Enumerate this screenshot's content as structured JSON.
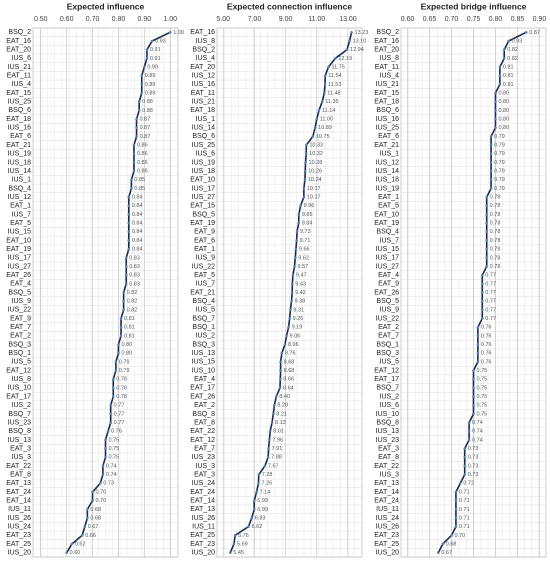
{
  "chart_data": [
    {
      "type": "line",
      "orientation": "horizontal",
      "title": "Expected influence",
      "grid": true,
      "color": "#1b2a4a",
      "marker_color": "#4f7fbf",
      "xlim": [
        0.47,
        1.03
      ],
      "xticks": [
        {
          "value": 0.5,
          "label": "0.50"
        },
        {
          "value": 0.6,
          "label": "0.60"
        },
        {
          "value": 0.7,
          "label": "0.70"
        },
        {
          "value": 0.8,
          "label": "0.80"
        },
        {
          "value": 0.9,
          "label": "0.90"
        },
        {
          "value": 1,
          "label": "1.00"
        }
      ],
      "categories": [
        "BSQ_2",
        "EAT_16",
        "EAT_20",
        "IUS_6",
        "IUS_21",
        "EAT_11",
        "IUS_4",
        "EAT_15",
        "IUS_25",
        "BSQ_6",
        "EAT_18",
        "IUS_16",
        "EAT_6",
        "EAT_21",
        "IUS_19",
        "IUS_18",
        "IUS_14",
        "IUS_1",
        "BSQ_4",
        "IUS_12",
        "EAT_1",
        "IUS_7",
        "EAT_5",
        "IUS_15",
        "EAT_10",
        "EAT_19",
        "IUS_17",
        "IUS_27",
        "EAT_26",
        "EAT_4",
        "BSQ_5",
        "IUS_9",
        "IUS_22",
        "EAT_9",
        "EAT_7",
        "EAT_2",
        "BSQ_3",
        "BSQ_1",
        "IUS_5",
        "EAT_12",
        "IUS_8",
        "IUS_10",
        "EAT_17",
        "IUS_2",
        "BSQ_7",
        "IUS_23",
        "BSQ_8",
        "IUS_13",
        "EAT_3",
        "IUS_3",
        "EAT_22",
        "EAT_8",
        "EAT_13",
        "EAT_24",
        "EAT_14",
        "IUS_11",
        "IUS_26",
        "IUS_24",
        "EAT_23",
        "EAT_25",
        "IUS_20"
      ],
      "values": [
        1,
        0.93,
        0.91,
        0.91,
        0.9,
        0.89,
        0.89,
        0.89,
        0.88,
        0.88,
        0.87,
        0.87,
        0.87,
        0.86,
        0.86,
        0.86,
        0.86,
        0.85,
        0.85,
        0.84,
        0.84,
        0.84,
        0.84,
        0.84,
        0.84,
        0.84,
        0.83,
        0.83,
        0.83,
        0.83,
        0.82,
        0.82,
        0.82,
        0.81,
        0.81,
        0.81,
        0.8,
        0.8,
        0.79,
        0.79,
        0.78,
        0.78,
        0.78,
        0.77,
        0.77,
        0.77,
        0.76,
        0.75,
        0.75,
        0.75,
        0.74,
        0.74,
        0.73,
        0.7,
        0.7,
        0.68,
        0.68,
        0.67,
        0.66,
        0.62,
        0.6
      ],
      "value_labels": [
        "1.00",
        "0.93",
        "0.91",
        "0.91",
        "0.90",
        "0.89",
        "0.89",
        "0.89",
        "0.88",
        "0.88",
        "0.87",
        "0.87",
        "0.87",
        "0.86",
        "0.86",
        "0.86",
        "0.86",
        "0.85",
        "0.85",
        "0.84",
        "0.84",
        "0.84",
        "0.84",
        "0.84",
        "0.84",
        "0.84",
        "0.83",
        "0.83",
        "0.83",
        "0.83",
        "0.82",
        "0.82",
        "0.82",
        "0.81",
        "0.81",
        "0.81",
        "0.80",
        "0.80",
        "0.79",
        "0.79",
        "0.78",
        "0.78",
        "0.78",
        "0.77",
        "0.77",
        "0.77",
        "0.76",
        "0.75",
        "0.75",
        "0.75",
        "0.74",
        "0.74",
        "0.73",
        "0.70",
        "0.70",
        "0.68",
        "0.68",
        "0.67",
        "0.66",
        "0.62",
        "0.60"
      ]
    },
    {
      "type": "line",
      "orientation": "horizontal",
      "title": "Expected connection influence",
      "grid": true,
      "color": "#1b2a4a",
      "marker_color": "#4f7fbf",
      "xlim": [
        4.6,
        13.9
      ],
      "xticks": [
        {
          "value": 5,
          "label": "5.00"
        },
        {
          "value": 7,
          "label": "7.00"
        },
        {
          "value": 9,
          "label": "9.00"
        },
        {
          "value": 11,
          "label": "11.00"
        },
        {
          "value": 13,
          "label": "13.00"
        }
      ],
      "categories": [
        "EAT_16",
        "IUS_8",
        "BSQ_2",
        "IUS_4",
        "EAT_20",
        "IUS_12",
        "IUS_16",
        "EAT_11",
        "IUS_21",
        "EAT_18",
        "IUS_1",
        "IUS_14",
        "BSQ_6",
        "IUS_25",
        "IUS_6",
        "IUS_19",
        "IUS_18",
        "EAT_10",
        "IUS_17",
        "IUS_27",
        "EAT_15",
        "BSQ_5",
        "EAT_19",
        "EAT_9",
        "EAT_6",
        "EAT_1",
        "IUS_9",
        "IUS_22",
        "EAT_5",
        "IUS_7",
        "EAT_21",
        "BSQ_4",
        "IUS_5",
        "BSQ_7",
        "BSQ_1",
        "IUS_2",
        "BSQ_3",
        "IUS_13",
        "IUS_15",
        "IUS_10",
        "EAT_4",
        "EAT_17",
        "EAT_26",
        "EAT_2",
        "BSQ_8",
        "EAT_8",
        "EAT_22",
        "EAT_12",
        "EAT_7",
        "IUS_23",
        "IUS_3",
        "EAT_3",
        "IUS_24",
        "EAT_24",
        "EAT_14",
        "EAT_13",
        "IUS_26",
        "IUS_11",
        "EAT_25",
        "EAT_23",
        "IUS_20"
      ],
      "values": [
        13.23,
        13.1,
        12.94,
        12.19,
        11.75,
        11.54,
        11.53,
        11.48,
        11.35,
        11.14,
        11,
        10.89,
        10.75,
        10.33,
        10.32,
        10.28,
        10.26,
        10.24,
        10.17,
        10.17,
        9.96,
        9.85,
        9.84,
        9.73,
        9.71,
        9.66,
        9.62,
        9.57,
        9.47,
        9.43,
        9.42,
        9.38,
        9.31,
        9.26,
        9.19,
        9.06,
        8.96,
        8.76,
        8.68,
        8.68,
        8.66,
        8.64,
        8.4,
        8.28,
        8.21,
        8.13,
        8.01,
        7.96,
        7.91,
        7.88,
        7.67,
        7.28,
        7.26,
        7.14,
        6.99,
        6.99,
        6.83,
        6.62,
        5.76,
        5.69,
        5.45
      ],
      "value_labels": [
        "13.23",
        "13.10",
        "12.94",
        "12.19",
        "11.75",
        "11.54",
        "11.53",
        "11.48",
        "11.35",
        "11.14",
        "11.00",
        "10.89",
        "10.75",
        "10.33",
        "10.32",
        "10.28",
        "10.26",
        "10.24",
        "10.17",
        "10.17",
        "9.96",
        "9.85",
        "9.84",
        "9.73",
        "9.71",
        "9.66",
        "9.62",
        "9.57",
        "9.47",
        "9.43",
        "9.42",
        "9.38",
        "9.31",
        "9.26",
        "9.19",
        "9.06",
        "8.96",
        "8.76",
        "8.68",
        "8.68",
        "8.66",
        "8.64",
        "8.40",
        "8.28",
        "8.21",
        "8.13",
        "8.01",
        "7.96",
        "7.91",
        "7.88",
        "7.67",
        "7.28",
        "7.26",
        "7.14",
        "6.99",
        "6.99",
        "6.83",
        "6.62",
        "5.76",
        "5.69",
        "5.45"
      ]
    },
    {
      "type": "line",
      "orientation": "horizontal",
      "title": "Expected bridge influence",
      "grid": true,
      "color": "#1b2a4a",
      "marker_color": "#4f7fbf",
      "xlim": [
        0.585,
        0.915
      ],
      "xticks": [
        {
          "value": 0.6,
          "label": "0.60"
        },
        {
          "value": 0.65,
          "label": "0.65"
        },
        {
          "value": 0.7,
          "label": "0.70"
        },
        {
          "value": 0.75,
          "label": "0.75"
        },
        {
          "value": 0.8,
          "label": "0.80"
        },
        {
          "value": 0.85,
          "label": "0.85"
        },
        {
          "value": 0.9,
          "label": "0.90"
        }
      ],
      "categories": [
        "BSQ_2",
        "EAT_16",
        "EAT_20",
        "IUS_8",
        "EAT_11",
        "IUS_4",
        "IUS_21",
        "EAT_15",
        "EAT_18",
        "BSQ_6",
        "IUS_16",
        "IUS_25",
        "EAT_6",
        "EAT_21",
        "IUS_1",
        "IUS_12",
        "IUS_14",
        "IUS_18",
        "IUS_19",
        "EAT_1",
        "EAT_5",
        "EAT_10",
        "EAT_19",
        "BSQ_4",
        "IUS_7",
        "IUS_15",
        "IUS_17",
        "IUS_27",
        "EAT_4",
        "EAT_9",
        "EAT_26",
        "BSQ_5",
        "IUS_9",
        "IUS_22",
        "EAT_2",
        "EAT_7",
        "BSQ_1",
        "BSQ_3",
        "IUS_5",
        "EAT_12",
        "EAT_17",
        "BSQ_7",
        "IUS_2",
        "IUS_6",
        "IUS_10",
        "BSQ_8",
        "IUS_13",
        "IUS_23",
        "EAT_3",
        "EAT_8",
        "EAT_22",
        "IUS_3",
        "EAT_13",
        "EAT_14",
        "EAT_24",
        "IUS_11",
        "IUS_24",
        "IUS_26",
        "EAT_23",
        "EAT_25",
        "IUS_20"
      ],
      "values": [
        0.87,
        0.83,
        0.82,
        0.82,
        0.81,
        0.81,
        0.81,
        0.8,
        0.8,
        0.8,
        0.8,
        0.8,
        0.79,
        0.79,
        0.79,
        0.79,
        0.79,
        0.79,
        0.79,
        0.78,
        0.78,
        0.78,
        0.78,
        0.78,
        0.78,
        0.78,
        0.78,
        0.78,
        0.77,
        0.77,
        0.77,
        0.77,
        0.77,
        0.77,
        0.76,
        0.76,
        0.76,
        0.76,
        0.76,
        0.75,
        0.75,
        0.75,
        0.75,
        0.75,
        0.75,
        0.74,
        0.74,
        0.74,
        0.73,
        0.73,
        0.73,
        0.73,
        0.72,
        0.71,
        0.71,
        0.71,
        0.71,
        0.71,
        0.7,
        0.68,
        0.67
      ],
      "value_labels": [
        "0.87",
        "0.83",
        "0.82",
        "0.82",
        "0.81",
        "0.81",
        "0.81",
        "0.80",
        "0.80",
        "0.80",
        "0.80",
        "0.80",
        "0.79",
        "0.79",
        "0.79",
        "0.79",
        "0.79",
        "0.79",
        "0.79",
        "0.78",
        "0.78",
        "0.78",
        "0.78",
        "0.78",
        "0.78",
        "0.78",
        "0.78",
        "0.78",
        "0.77",
        "0.77",
        "0.77",
        "0.77",
        "0.77",
        "0.77",
        "0.76",
        "0.76",
        "0.76",
        "0.76",
        "0.76",
        "0.75",
        "0.75",
        "0.75",
        "0.75",
        "0.75",
        "0.75",
        "0.74",
        "0.74",
        "0.74",
        "0.73",
        "0.73",
        "0.73",
        "0.73",
        "0.72",
        "0.71",
        "0.71",
        "0.71",
        "0.71",
        "0.71",
        "0.70",
        "0.68",
        "0.67"
      ]
    }
  ]
}
